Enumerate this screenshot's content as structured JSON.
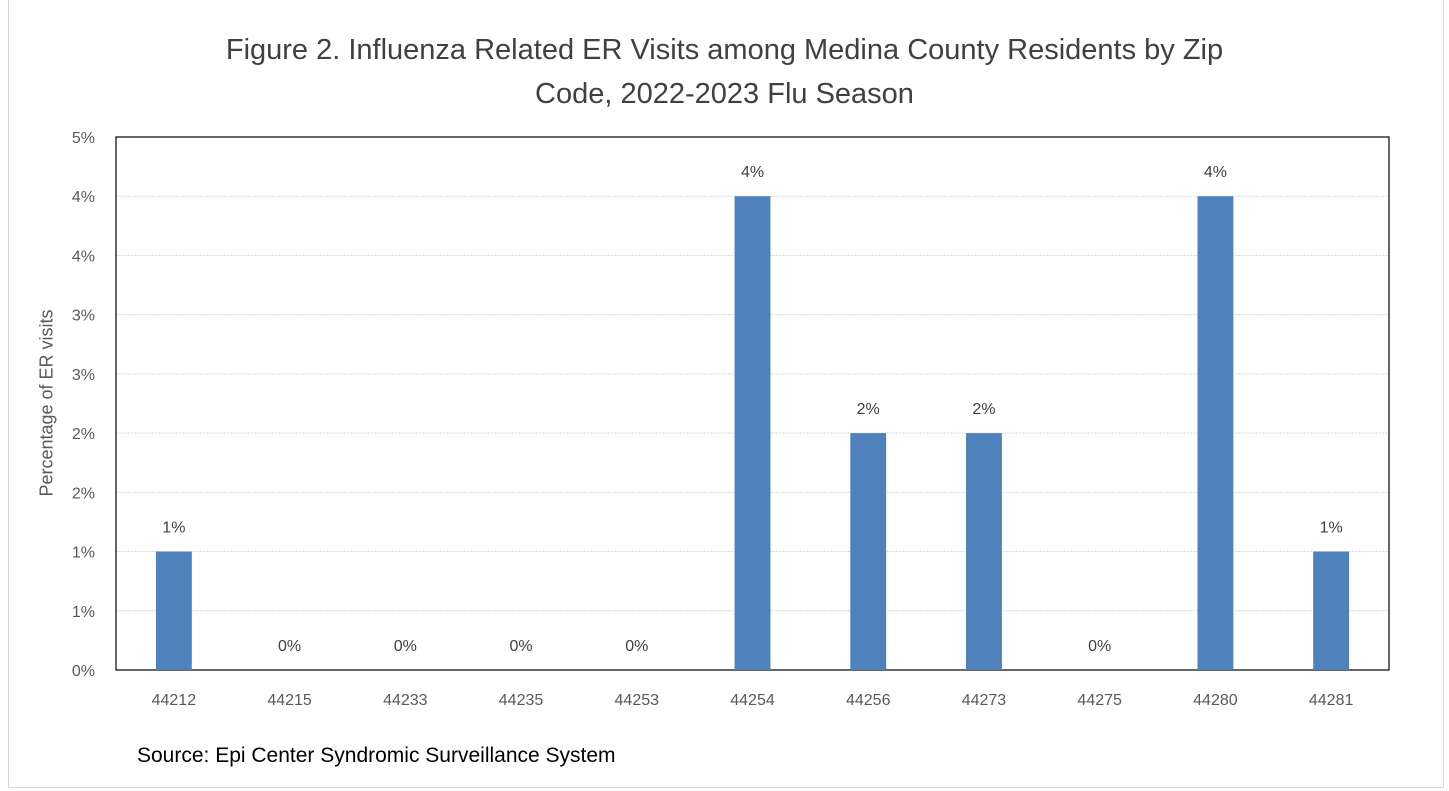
{
  "chart_data": {
    "type": "bar",
    "title_lines": [
      "Figure 2. Influenza Related ER Visits among Medina County Residents by Zip",
      "Code, 2022-2023 Flu Season"
    ],
    "xlabel": "",
    "ylabel": "Percentage of ER visits",
    "source": "Source: Epi Center Syndromic Surveillance System",
    "categories": [
      "44212",
      "44215",
      "44233",
      "44235",
      "44253",
      "44254",
      "44256",
      "44273",
      "44275",
      "44280",
      "44281"
    ],
    "values": [
      1.0,
      0,
      0,
      0,
      0,
      4.0,
      2.0,
      2.0,
      0,
      4.0,
      1.0
    ],
    "data_labels": [
      "1%",
      "0%",
      "0%",
      "0%",
      "0%",
      "4%",
      "2%",
      "2%",
      "0%",
      "4%",
      "1%"
    ],
    "ylim": [
      0,
      4.5
    ],
    "yticks": [
      0,
      0.5,
      1.0,
      1.5,
      2.0,
      2.5,
      3.0,
      3.5,
      4.0,
      4.5
    ],
    "ytick_labels": [
      "0%",
      "1%",
      "1%",
      "2%",
      "2%",
      "3%",
      "3%",
      "4%",
      "4%",
      "5%"
    ],
    "grid": true,
    "bar_color": "#4f81bd",
    "grid_color": "#d9d9d9",
    "plot_border_color": "#000000"
  }
}
